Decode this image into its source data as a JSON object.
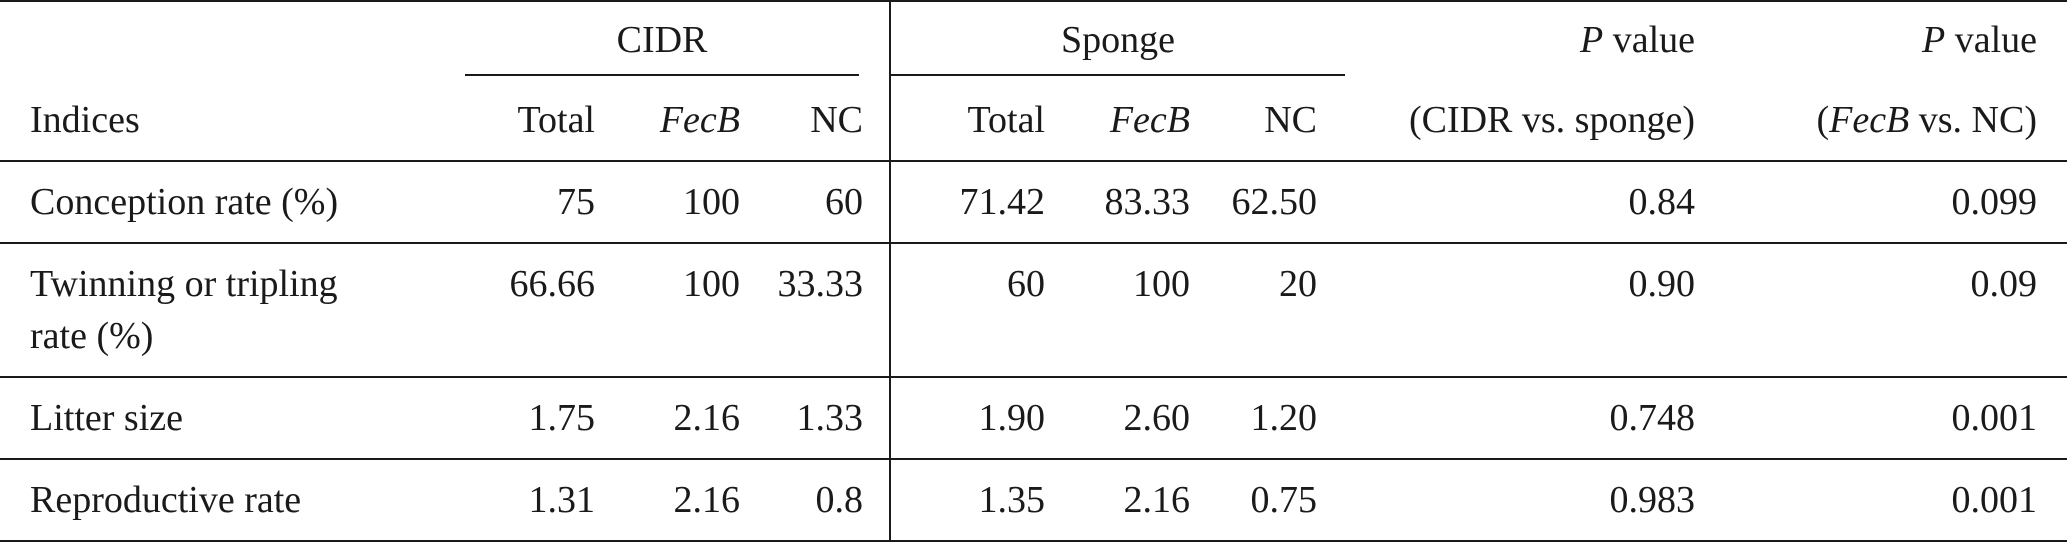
{
  "header": {
    "group_cidr": "CIDR",
    "group_sponge": "Sponge",
    "p1_line1_italic": "P",
    "p1_line1_rest": " value",
    "p2_line1_italic": "P",
    "p2_line1_rest": " value",
    "indices": "Indices",
    "cidr_total": "Total",
    "cidr_fecb": "FecB",
    "cidr_nc": "NC",
    "sponge_total": "Total",
    "sponge_fecb": "FecB",
    "sponge_nc": "NC",
    "p1_line2": "(CIDR vs. sponge)",
    "p2_line2_open": "(",
    "p2_line2_italic": "FecB",
    "p2_line2_rest": " vs. NC)"
  },
  "rows": [
    {
      "label_line1": "Conception rate (%)",
      "label_line2": "",
      "cidr_total": "75",
      "cidr_fecb": "100",
      "cidr_nc": "60",
      "sponge_total": "71.42",
      "sponge_fecb": "83.33",
      "sponge_nc": "62.50",
      "p_cidr_vs_sponge": "0.84",
      "p_fecb_vs_nc": "0.099"
    },
    {
      "label_line1": "Twinning or tripling",
      "label_line2": "rate (%)",
      "cidr_total": "66.66",
      "cidr_fecb": "100",
      "cidr_nc": "33.33",
      "sponge_total": "60",
      "sponge_fecb": "100",
      "sponge_nc": "20",
      "p_cidr_vs_sponge": "0.90",
      "p_fecb_vs_nc": "0.09"
    },
    {
      "label_line1": "Litter size",
      "label_line2": "",
      "cidr_total": "1.75",
      "cidr_fecb": "2.16",
      "cidr_nc": "1.33",
      "sponge_total": "1.90",
      "sponge_fecb": "2.60",
      "sponge_nc": "1.20",
      "p_cidr_vs_sponge": "0.748",
      "p_fecb_vs_nc": "0.001"
    },
    {
      "label_line1": "Reproductive rate",
      "label_line2": "",
      "cidr_total": "1.31",
      "cidr_fecb": "2.16",
      "cidr_nc": "0.8",
      "sponge_total": "1.35",
      "sponge_fecb": "2.16",
      "sponge_nc": "0.75",
      "p_cidr_vs_sponge": "0.983",
      "p_fecb_vs_nc": "0.001"
    }
  ]
}
